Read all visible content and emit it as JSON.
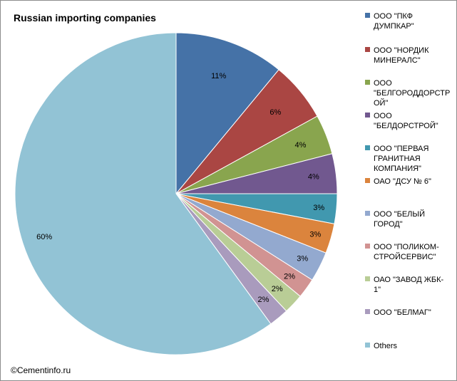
{
  "chart_data": {
    "type": "pie",
    "title": "Russian importing companies",
    "slices": [
      {
        "name": "ООО \"ПКФ ДУМПКАР\"",
        "value": 11,
        "label": "11%",
        "color": "#4572A7"
      },
      {
        "name": "ООО \"НОРДИК МИНЕРАЛС\"",
        "value": 6,
        "label": "6%",
        "color": "#AA4643"
      },
      {
        "name": "ООО \"БЕЛГОРОДДОРСТРОЙ\"",
        "value": 4,
        "label": "4%",
        "color": "#89A54E"
      },
      {
        "name": "ООО \"БЕЛДОРСТРОЙ\"",
        "value": 4,
        "label": "4%",
        "color": "#71588F"
      },
      {
        "name": "ООО \"ПЕРВАЯ ГРАНИТНАЯ КОМПАНИЯ\"",
        "value": 3,
        "label": "3%",
        "color": "#4198AF"
      },
      {
        "name": "ОАО \"ДСУ № 6\"",
        "value": 3,
        "label": "3%",
        "color": "#DB843D"
      },
      {
        "name": "ООО \"БЕЛЫЙ ГОРОД\"",
        "value": 3,
        "label": "3%",
        "color": "#93A9CF"
      },
      {
        "name": "ООО \"ПОЛИКОМ-СТРОЙСЕРВИС\"",
        "value": 2,
        "label": "2%",
        "color": "#D19392"
      },
      {
        "name": "ОАО \"ЗАВОД ЖБК-1\"",
        "value": 2,
        "label": "2%",
        "color": "#B9CD96"
      },
      {
        "name": "ООО \"БЕЛМАГ\"",
        "value": 2,
        "label": "2%",
        "color": "#A99BBD"
      },
      {
        "name": "Others",
        "value": 60,
        "label": "60%",
        "color": "#92C3D5"
      }
    ],
    "legend_position": "right"
  },
  "legend": [
    "ООО \"ПКФ\nДУМПКАР\"",
    "ООО \"НОРДИК\nМИНЕРАЛС\"",
    "ООО\n\"БЕЛГОРОДДОРСТР\nОЙ\"",
    "ООО\n\"БЕЛДОРСТРОЙ\"",
    "ООО \"ПЕРВАЯ\nГРАНИТНАЯ\nКОМПАНИЯ\"",
    "ОАО \"ДСУ № 6\"",
    "ООО \"БЕЛЫЙ\nГОРОД\"",
    "ООО \"ПОЛИКОМ-\nСТРОЙСЕРВИС\"",
    "ОАО \"ЗАВОД ЖБК-\n1\"",
    "ООО \"БЕЛМАГ\"",
    "Others"
  ],
  "copyright": "©Cementinfo.ru"
}
